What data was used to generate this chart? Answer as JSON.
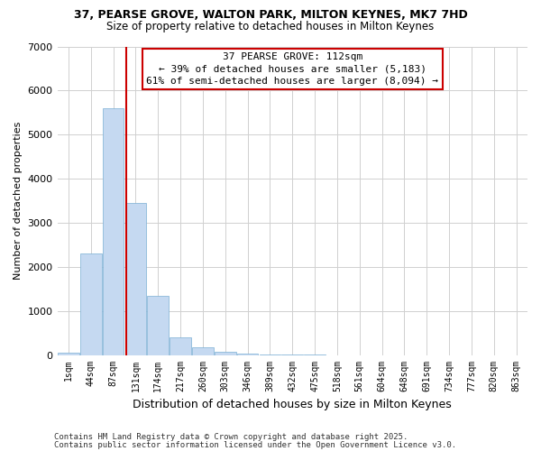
{
  "title_line1": "37, PEARSE GROVE, WALTON PARK, MILTON KEYNES, MK7 7HD",
  "title_line2": "Size of property relative to detached houses in Milton Keynes",
  "xlabel": "Distribution of detached houses by size in Milton Keynes",
  "ylabel": "Number of detached properties",
  "categories": [
    "1sqm",
    "44sqm",
    "87sqm",
    "131sqm",
    "174sqm",
    "217sqm",
    "260sqm",
    "303sqm",
    "346sqm",
    "389sqm",
    "432sqm",
    "475sqm",
    "518sqm",
    "561sqm",
    "604sqm",
    "648sqm",
    "691sqm",
    "734sqm",
    "777sqm",
    "820sqm",
    "863sqm"
  ],
  "values": [
    50,
    2300,
    5600,
    3450,
    1350,
    400,
    170,
    80,
    30,
    10,
    5,
    2,
    1,
    0,
    0,
    0,
    0,
    0,
    0,
    0,
    0
  ],
  "bar_color": "#c5d9f1",
  "bar_edge_color": "#7bafd4",
  "grid_color": "#d0d0d0",
  "background_color": "#ffffff",
  "annotation_line1": "37 PEARSE GROVE: 112sqm",
  "annotation_line2": "← 39% of detached houses are smaller (5,183)",
  "annotation_line3": "61% of semi-detached houses are larger (8,094) →",
  "annotation_box_color": "#ffffff",
  "annotation_box_edge_color": "#cc0000",
  "vline_color": "#cc0000",
  "ylim": [
    0,
    7000
  ],
  "yticks": [
    0,
    1000,
    2000,
    3000,
    4000,
    5000,
    6000,
    7000
  ],
  "footnote_line1": "Contains HM Land Registry data © Crown copyright and database right 2025.",
  "footnote_line2": "Contains public sector information licensed under the Open Government Licence v3.0."
}
